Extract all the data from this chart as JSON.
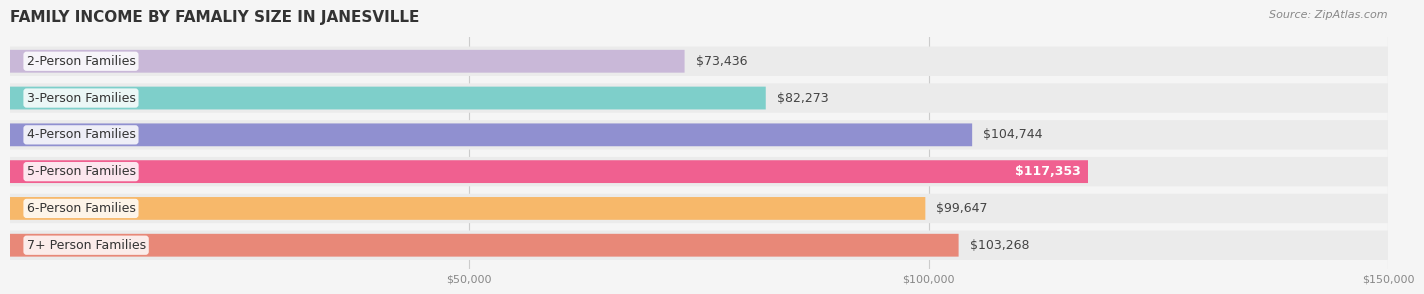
{
  "title": "FAMILY INCOME BY FAMALIY SIZE IN JANESVILLE",
  "source": "Source: ZipAtlas.com",
  "categories": [
    "2-Person Families",
    "3-Person Families",
    "4-Person Families",
    "5-Person Families",
    "6-Person Families",
    "7+ Person Families"
  ],
  "values": [
    73436,
    82273,
    104744,
    117353,
    99647,
    103268
  ],
  "bar_colors": [
    "#c9b8d8",
    "#7ecfca",
    "#9090d0",
    "#f06090",
    "#f7b86a",
    "#e88878"
  ],
  "label_colors": [
    "#888888",
    "#888888",
    "#888888",
    "#ffffff",
    "#888888",
    "#888888"
  ],
  "value_labels": [
    "$73,436",
    "$82,273",
    "$104,744",
    "$117,353",
    "$99,647",
    "$103,268"
  ],
  "background_color": "#f5f5f5",
  "bar_bg_color": "#ebebeb",
  "xlim": [
    0,
    150000
  ],
  "xticks": [
    0,
    50000,
    100000,
    150000
  ],
  "xtick_labels": [
    "",
    "$50,000",
    "$100,000",
    "$150,000"
  ],
  "title_fontsize": 11,
  "source_fontsize": 8,
  "label_fontsize": 9,
  "value_fontsize": 9,
  "tick_fontsize": 8
}
